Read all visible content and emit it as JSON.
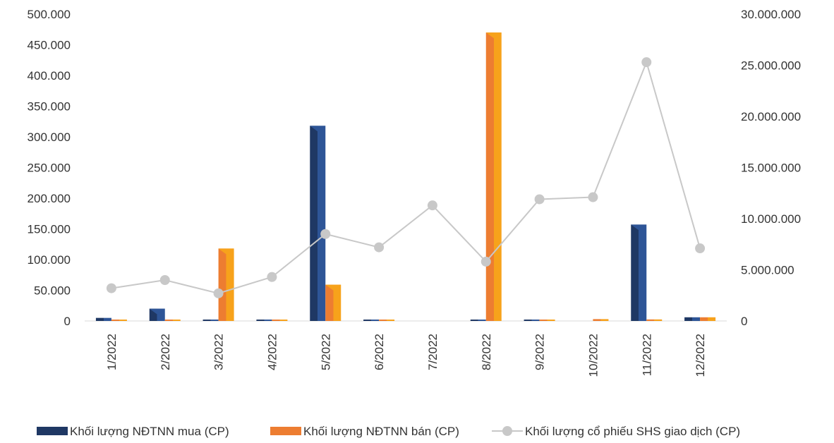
{
  "chart_data": {
    "type": "bar",
    "categories": [
      "1/2022",
      "2/2022",
      "3/2022",
      "4/2022",
      "5/2022",
      "6/2022",
      "7/2022",
      "8/2022",
      "9/2022",
      "10/2022",
      "11/2022",
      "12/2022"
    ],
    "series": [
      {
        "name": "Khối lượng NĐTNN mua (CP)",
        "type": "bar",
        "axis": "left",
        "color": "#1f3864",
        "values": [
          5000,
          20000,
          1500,
          1500,
          318000,
          1500,
          0,
          1500,
          1500,
          0,
          157000,
          6000
        ]
      },
      {
        "name": "Khối lượng NĐTNN bán (CP)",
        "type": "bar",
        "axis": "left",
        "color": "#ed7d31",
        "values": [
          1500,
          1500,
          118000,
          1500,
          59000,
          1500,
          0,
          470000,
          1500,
          3000,
          2500,
          6000
        ]
      },
      {
        "name": "Khối lượng cổ phiếu SHS giao dịch (CP)",
        "type": "line",
        "axis": "right",
        "color": "#c8c8c8",
        "values": [
          3200000,
          4000000,
          2700000,
          4300000,
          8500000,
          7200000,
          11300000,
          5800000,
          11900000,
          12100000,
          25300000,
          7100000
        ]
      }
    ],
    "y_left": {
      "min": 0,
      "max": 500000,
      "ticks": [
        "0",
        "50.000",
        "100.000",
        "150.000",
        "200.000",
        "250.000",
        "300.000",
        "350.000",
        "400.000",
        "450.000",
        "500.000"
      ]
    },
    "y_right": {
      "min": 0,
      "max": 30000000,
      "ticks": [
        "0",
        "5.000.000",
        "10.000.000",
        "15.000.000",
        "20.000.000",
        "25.000.000",
        "30.000.000"
      ]
    },
    "grid": false,
    "legend_position": "bottom"
  }
}
